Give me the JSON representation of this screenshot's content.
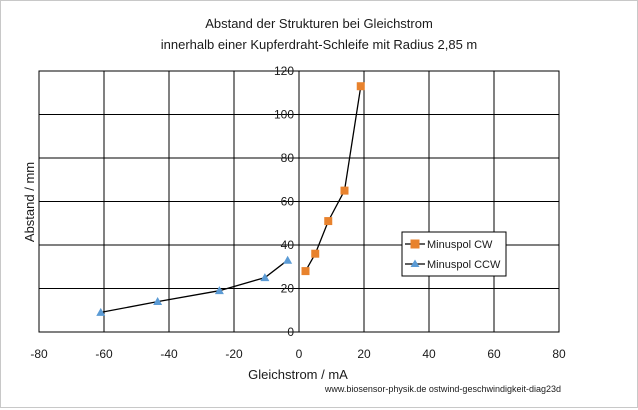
{
  "chart_data": {
    "type": "scatter",
    "title": "Abstand der Strukturen bei Gleichstrom",
    "subtitle": "innerhalb einer Kupferdraht-Schleife mit Radius 2,85 m",
    "xlabel": "Gleichstrom / mA",
    "ylabel": "Abstand / mm",
    "xlim": [
      -80,
      80
    ],
    "ylim": [
      0,
      120
    ],
    "xticks": [
      -80,
      -60,
      -40,
      -20,
      0,
      20,
      40,
      60,
      80
    ],
    "yticks": [
      0,
      20,
      40,
      60,
      80,
      100,
      120
    ],
    "grid": true,
    "legend_position": "right",
    "series": [
      {
        "name": "Minuspol CW",
        "color": "#e8822d",
        "marker": "square",
        "x": [
          2,
          5,
          9,
          14,
          19
        ],
        "y": [
          28,
          36,
          51,
          65,
          113
        ]
      },
      {
        "name": "Minuspol CCW",
        "color": "#5b9bd5",
        "marker": "triangle",
        "x": [
          -61,
          -43.5,
          -24.5,
          -10.5,
          -3.5
        ],
        "y": [
          9,
          14,
          19,
          25,
          33
        ]
      }
    ],
    "footer": "www.biosensor-physik.de  ostwind-geschwindigkeit-diag23d"
  }
}
